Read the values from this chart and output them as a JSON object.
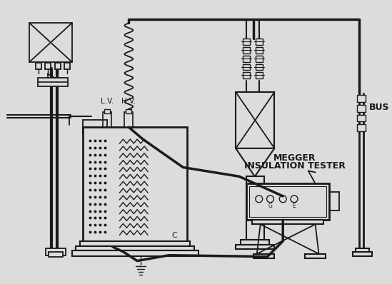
{
  "bg_color": "#dcdcdc",
  "line_color": "#1a1a1a",
  "labels": {
    "LV": "L.V.",
    "HV": "H.V.",
    "C": "C",
    "megger1": "MEGGER",
    "megger2": "INSULATION TESTER",
    "bus": "BUS"
  },
  "lw": 1.3,
  "tlw": 2.5
}
